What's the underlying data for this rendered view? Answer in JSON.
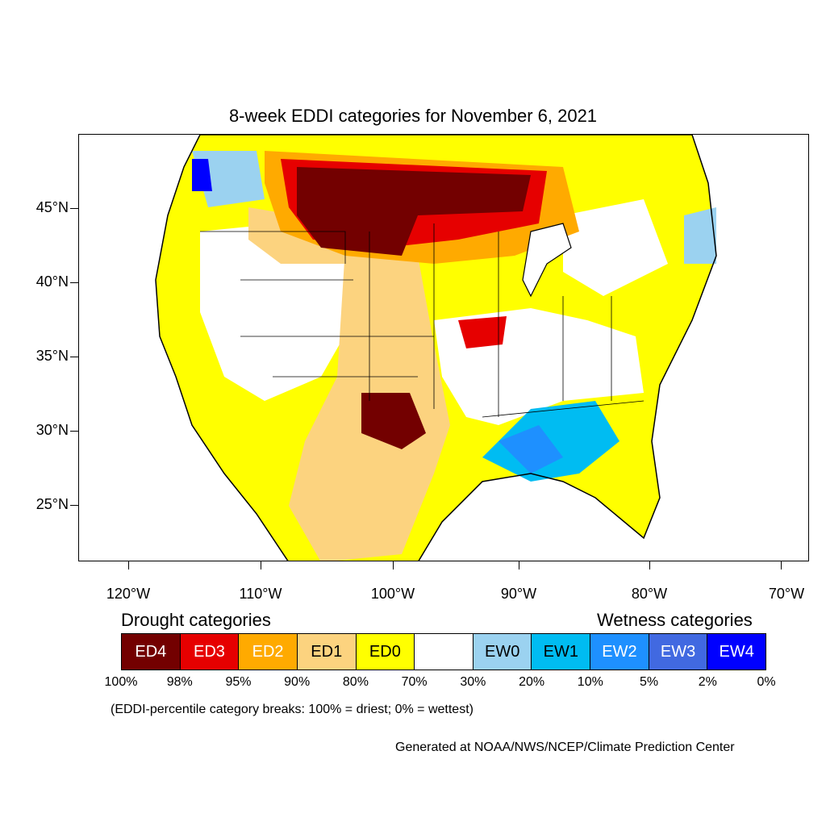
{
  "title": "8-week EDDI categories for November 6, 2021",
  "map": {
    "lat_ticks": [
      "45°N",
      "40°N",
      "35°N",
      "30°N",
      "25°N"
    ],
    "lon_ticks": [
      "120°W",
      "110°W",
      "100°W",
      "90°W",
      "80°W",
      "70°W"
    ]
  },
  "legend": {
    "drought_heading": "Drought categories",
    "wetness_heading": "Wetness categories",
    "categories": [
      {
        "label": "ED4",
        "color": "#730000",
        "text_color": "#ffffff"
      },
      {
        "label": "ED3",
        "color": "#e60000",
        "text_color": "#ffffff"
      },
      {
        "label": "ED2",
        "color": "#ffaa00",
        "text_color": "#ffffff"
      },
      {
        "label": "ED1",
        "color": "#fcd37f",
        "text_color": "#000000"
      },
      {
        "label": "ED0",
        "color": "#ffff00",
        "text_color": "#000000"
      },
      {
        "label": "",
        "color": "#ffffff",
        "text_color": "#000000"
      },
      {
        "label": "EW0",
        "color": "#9bd2f0",
        "text_color": "#000000"
      },
      {
        "label": "EW1",
        "color": "#00bcf2",
        "text_color": "#000000"
      },
      {
        "label": "EW2",
        "color": "#1e90ff",
        "text_color": "#ffffff"
      },
      {
        "label": "EW3",
        "color": "#4169e1",
        "text_color": "#ffffff"
      },
      {
        "label": "EW4",
        "color": "#0000ff",
        "text_color": "#ffffff"
      }
    ],
    "breaks": [
      "100%",
      "98%",
      "95%",
      "90%",
      "80%",
      "70%",
      "30%",
      "20%",
      "10%",
      "5%",
      "2%",
      "0%"
    ]
  },
  "note": "(EDDI-percentile category breaks: 100% = driest; 0% = wettest)",
  "credit": "Generated at NOAA/NWS/NCEP/Climate Prediction Center"
}
